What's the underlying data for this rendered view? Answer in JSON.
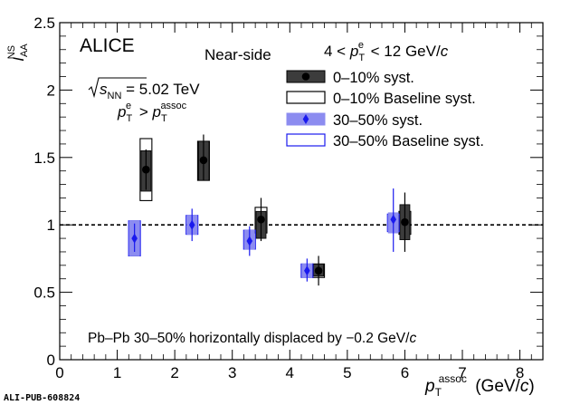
{
  "figure_id": "ALI-PUB-608824",
  "chart_data": {
    "type": "scatter",
    "experiment": "ALICE",
    "region": "Near-side",
    "trigger_range": "4 < p_T^e < 12 GeV/c",
    "energy": "√s_NN = 5.02 TeV",
    "condition": "p_T^e > p_T^assoc",
    "footnote": "Pb–Pb 30–50% horizontally displaced by −0.2 GeV/c",
    "xlabel": "p_T^assoc (GeV/c)",
    "ylabel": "I_AA^NS",
    "xlim": [
      0,
      8.4
    ],
    "ylim": [
      0,
      2.5
    ],
    "x_ticks": [
      "0",
      "1",
      "2",
      "3",
      "4",
      "5",
      "6",
      "7",
      "8"
    ],
    "y_ticks": [
      "0",
      "0.5",
      "1",
      "1.5",
      "2",
      "2.5"
    ],
    "reference_line": 1,
    "legend_position": "top-right",
    "legend": [
      {
        "label": "0–10% syst.",
        "style": "filled-dark"
      },
      {
        "label": "0–10% Baseline syst.",
        "style": "open-black"
      },
      {
        "label": "30–50% syst.",
        "style": "filled-blue"
      },
      {
        "label": "30–50% Baseline syst.",
        "style": "open-blue"
      }
    ],
    "colors": {
      "central": "#000000",
      "central_fill": "#3c3c3c",
      "semi": "#1a1aee",
      "semi_fill": "#8c8cf0"
    },
    "series": [
      {
        "name": "0–10%",
        "marker": "circle",
        "points": [
          {
            "x": 1.5,
            "y": 1.41,
            "stat": [
              1.26,
              1.56
            ],
            "syst": [
              1.25,
              1.55
            ],
            "baseline": [
              1.18,
              1.64
            ]
          },
          {
            "x": 2.5,
            "y": 1.48,
            "stat": [
              1.33,
              1.67
            ],
            "syst": [
              1.33,
              1.62
            ],
            "baseline": [
              1.33,
              1.62
            ]
          },
          {
            "x": 3.5,
            "y": 1.04,
            "stat": [
              0.88,
              1.2
            ],
            "syst": [
              0.9,
              1.1
            ],
            "baseline": [
              0.94,
              1.13
            ]
          },
          {
            "x": 4.5,
            "y": 0.66,
            "stat": [
              0.55,
              0.77
            ],
            "syst": [
              0.62,
              0.71
            ],
            "baseline": [
              0.61,
              0.71
            ]
          },
          {
            "x": 6.0,
            "y": 1.02,
            "stat": [
              0.8,
              1.24
            ],
            "syst": [
              0.89,
              1.15
            ],
            "baseline": [
              0.93,
              1.1
            ]
          }
        ]
      },
      {
        "name": "30–50%",
        "marker": "diamond",
        "points": [
          {
            "x": 1.3,
            "y": 0.9,
            "stat": [
              0.8,
              1.01
            ],
            "syst": [
              0.77,
              1.03
            ],
            "baseline": [
              0.77,
              1.03
            ]
          },
          {
            "x": 2.3,
            "y": 1.0,
            "stat": [
              0.88,
              1.12
            ],
            "syst": [
              0.93,
              1.07
            ],
            "baseline": [
              0.93,
              1.07
            ]
          },
          {
            "x": 3.3,
            "y": 0.88,
            "stat": [
              0.77,
              0.99
            ],
            "syst": [
              0.82,
              0.96
            ],
            "baseline": [
              0.82,
              0.96
            ]
          },
          {
            "x": 4.3,
            "y": 0.66,
            "stat": [
              0.58,
              0.75
            ],
            "syst": [
              0.61,
              0.71
            ],
            "baseline": [
              0.61,
              0.71
            ]
          },
          {
            "x": 5.8,
            "y": 1.04,
            "stat": [
              0.8,
              1.27
            ],
            "syst": [
              0.94,
              1.09
            ],
            "baseline": [
              0.95,
              1.08
            ]
          }
        ]
      }
    ]
  }
}
